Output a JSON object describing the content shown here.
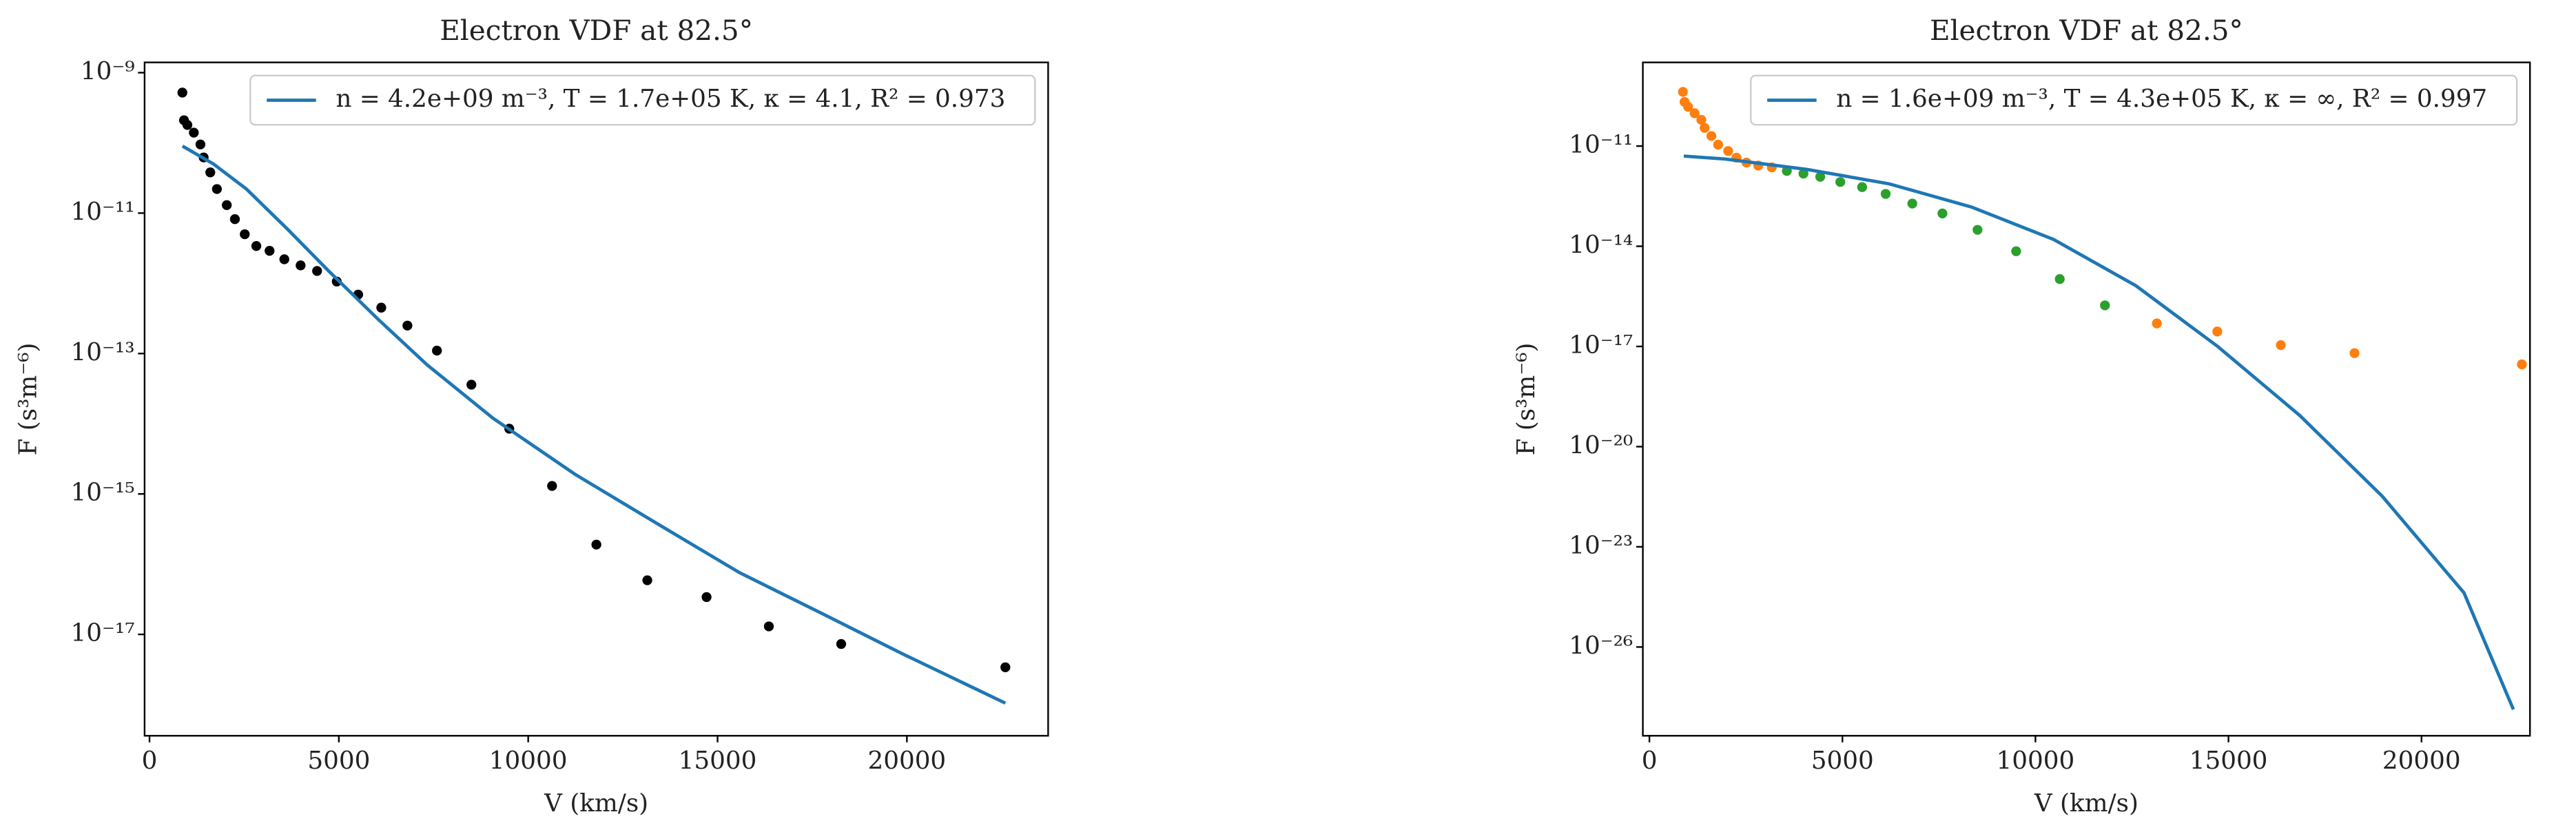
{
  "chart_data": [
    {
      "type": "scatter",
      "title": "Electron VDF at 82.5°",
      "x_label": "V (km/s)",
      "y_label": "F (s³m⁻⁶)",
      "yscale": "log",
      "legend": "upper right",
      "xlim": [
        -130,
        23730
      ],
      "xticks": [
        0,
        5000,
        10000,
        15000,
        20000
      ],
      "ylim": [
        3.6e-19,
        1.4e-09
      ],
      "yticks": [
        {
          "value": 1e-09,
          "label": "10⁻⁹"
        },
        {
          "value": 1e-11,
          "label": "10⁻¹¹"
        },
        {
          "value": 1e-13,
          "label": "10⁻¹³"
        },
        {
          "value": 1e-15,
          "label": "10⁻¹⁵"
        },
        {
          "value": 1e-17,
          "label": "10⁻¹⁷"
        }
      ],
      "series": [
        {
          "kind": "points",
          "color": "#000000",
          "x": [
            868,
            911,
            1000,
            1170,
            1345,
            1430,
            1605,
            1780,
            2040,
            2255,
            2515,
            2820,
            3170,
            3560,
            3990,
            4425,
            4945,
            5510,
            6120,
            6810,
            7590,
            8500,
            9500,
            10630,
            11800,
            13145,
            14710,
            16355,
            18265,
            22600
          ],
          "values": [
            5.2e-10,
            2.1e-10,
            1.8e-10,
            1.4e-10,
            9.5e-11,
            6.2e-11,
            3.8e-11,
            2.2e-11,
            1.3e-11,
            8.2e-12,
            5e-12,
            3.4e-12,
            2.9e-12,
            2.2e-12,
            1.8e-12,
            1.5e-12,
            1.06e-12,
            6.9e-13,
            4.5e-13,
            2.5e-13,
            1.1e-13,
            3.6e-14,
            8.5e-15,
            1.3e-15,
            1.9e-16,
            5.9e-17,
            3.4e-17,
            1.3e-17,
            7.3e-18,
            3.4e-18
          ]
        },
        {
          "kind": "line",
          "name": "n = 4.2e+09 m⁻³, T = 1.7e+05 K, κ = 4.1, R² = 0.973",
          "color": "#1f77b4",
          "x": [
            870,
            1690,
            2560,
            3645,
            4730,
            6030,
            7330,
            9070,
            11240,
            13400,
            15575,
            17745,
            19910,
            22600
          ],
          "values": [
            9e-11,
            5e-11,
            2.2e-11,
            5.9e-12,
            1.5e-12,
            3.1e-13,
            6.9e-14,
            1.2e-14,
            1.9e-15,
            3.8e-16,
            7.6e-17,
            2e-17,
            5.2e-18,
            1.05e-18
          ]
        }
      ]
    },
    {
      "type": "scatter",
      "title": "Electron VDF at 82.5°",
      "x_label": "V (km/s)",
      "y_label": "F (s³m⁻⁶)",
      "yscale": "log",
      "legend": "upper right",
      "xlim": [
        -170,
        22810
      ],
      "xticks": [
        0,
        5000,
        10000,
        15000,
        20000
      ],
      "ylim": [
        2.2e-29,
        3.2e-09
      ],
      "yticks": [
        {
          "value": 1e-11,
          "label": "10⁻¹¹"
        },
        {
          "value": 1e-14,
          "label": "10⁻¹⁴"
        },
        {
          "value": 1e-17,
          "label": "10⁻¹⁷"
        },
        {
          "value": 1e-20,
          "label": "10⁻²⁰"
        },
        {
          "value": 1e-23,
          "label": "10⁻²³"
        },
        {
          "value": 1e-26,
          "label": "10⁻²⁶"
        }
      ],
      "series": [
        {
          "kind": "points",
          "color": "#ff7f0e",
          "x": [
            868,
            911,
            1000,
            1170,
            1345,
            1430,
            1605,
            1780,
            2040,
            2255,
            2515,
            2820,
            3170,
            13145,
            14710,
            16355,
            18265,
            22600
          ],
          "values": [
            4.2e-10,
            2.1e-10,
            1.5e-10,
            9.6e-11,
            6.1e-11,
            3.5e-11,
            2e-11,
            1.1e-11,
            7.1e-12,
            4.5e-12,
            3.2e-12,
            2.6e-12,
            2.3e-12,
            4.9e-17,
            2.8e-17,
            1.1e-17,
            6.3e-18,
            2.9e-18
          ]
        },
        {
          "kind": "points",
          "color": "#2ca02c",
          "x": [
            3560,
            3990,
            4425,
            4945,
            5510,
            6120,
            6810,
            7590,
            8500,
            9500,
            10630,
            11800
          ],
          "values": [
            1.8e-12,
            1.5e-12,
            1.2e-12,
            8.4e-13,
            5.9e-13,
            3.7e-13,
            1.9e-13,
            9.6e-14,
            3.1e-14,
            7.1e-15,
            1.04e-15,
            1.7e-16
          ]
        },
        {
          "kind": "line",
          "name": "n = 1.6e+09 m⁻³, T = 4.3e+05 K, κ = ∞, R² = 0.997",
          "color": "#1f77b4",
          "x": [
            890,
            1960,
            4085,
            6210,
            8340,
            10470,
            12600,
            14720,
            16850,
            18980,
            21100,
            22380
          ],
          "values": [
            5e-12,
            4.1e-12,
            2e-12,
            7.4e-13,
            1.5e-13,
            1.6e-14,
            6.6e-16,
            1e-17,
            8.5e-20,
            3.3e-22,
            4.2e-25,
            1.35e-28
          ]
        }
      ]
    }
  ]
}
